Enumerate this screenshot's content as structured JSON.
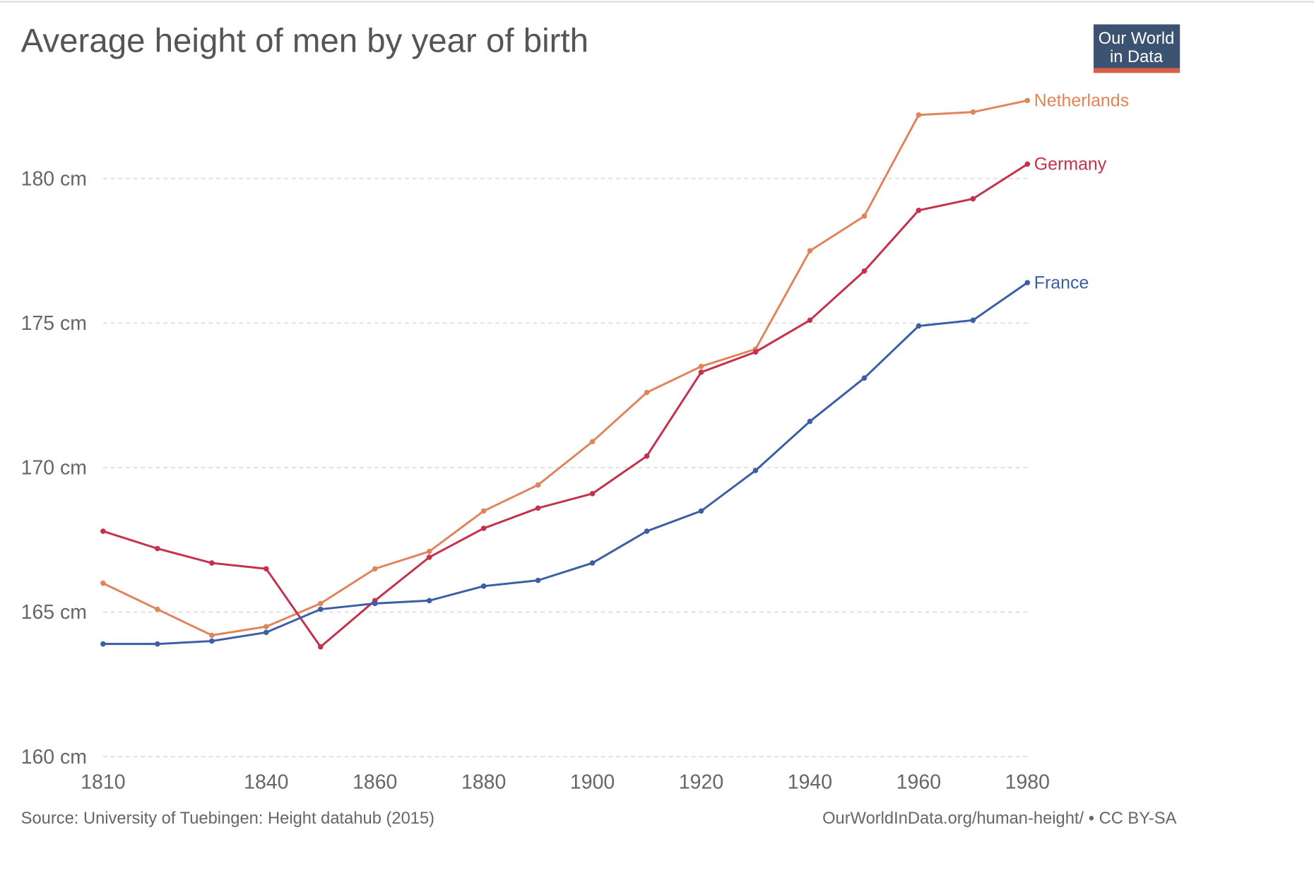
{
  "chart_data": {
    "type": "line",
    "title": "Average height of men by year of birth",
    "source": "Source: University of Tuebingen: Height datahub (2015)",
    "credit": "OurWorldInData.org/human-height/ • CC BY-SA",
    "logo": {
      "line1": "Our World",
      "line2": "in Data",
      "bg": "#3b5370",
      "stripe": "#d65f4a"
    },
    "xlim": [
      1810,
      1980
    ],
    "ylim": [
      160,
      183
    ],
    "x_ticks": [
      1810,
      1840,
      1860,
      1880,
      1900,
      1920,
      1940,
      1960,
      1980
    ],
    "y_ticks": [
      160,
      165,
      170,
      175,
      180
    ],
    "y_unit": "cm",
    "grid": "horizontal dashed",
    "legend": "end-of-line labels (right)",
    "x": [
      1810,
      1820,
      1830,
      1840,
      1850,
      1860,
      1870,
      1880,
      1890,
      1900,
      1910,
      1920,
      1930,
      1940,
      1950,
      1960,
      1970,
      1980
    ],
    "series": [
      {
        "name": "Netherlands",
        "color": "#e0855a",
        "values": [
          166.0,
          165.1,
          164.2,
          164.5,
          165.3,
          166.5,
          167.1,
          168.5,
          169.4,
          170.9,
          172.6,
          173.5,
          174.1,
          177.5,
          178.7,
          182.2,
          182.3,
          182.7
        ]
      },
      {
        "name": "Germany",
        "color": "#c5304a",
        "values": [
          167.8,
          167.2,
          166.7,
          166.5,
          163.8,
          165.4,
          166.9,
          167.9,
          168.6,
          169.1,
          170.4,
          173.3,
          174.0,
          175.1,
          176.8,
          178.9,
          179.3,
          180.5
        ]
      },
      {
        "name": "France",
        "color": "#3b5ea6",
        "values": [
          163.9,
          163.9,
          164.0,
          164.3,
          165.1,
          165.3,
          165.4,
          165.9,
          166.1,
          166.7,
          167.8,
          168.5,
          169.9,
          171.6,
          173.1,
          174.9,
          175.1,
          176.4
        ]
      }
    ]
  }
}
